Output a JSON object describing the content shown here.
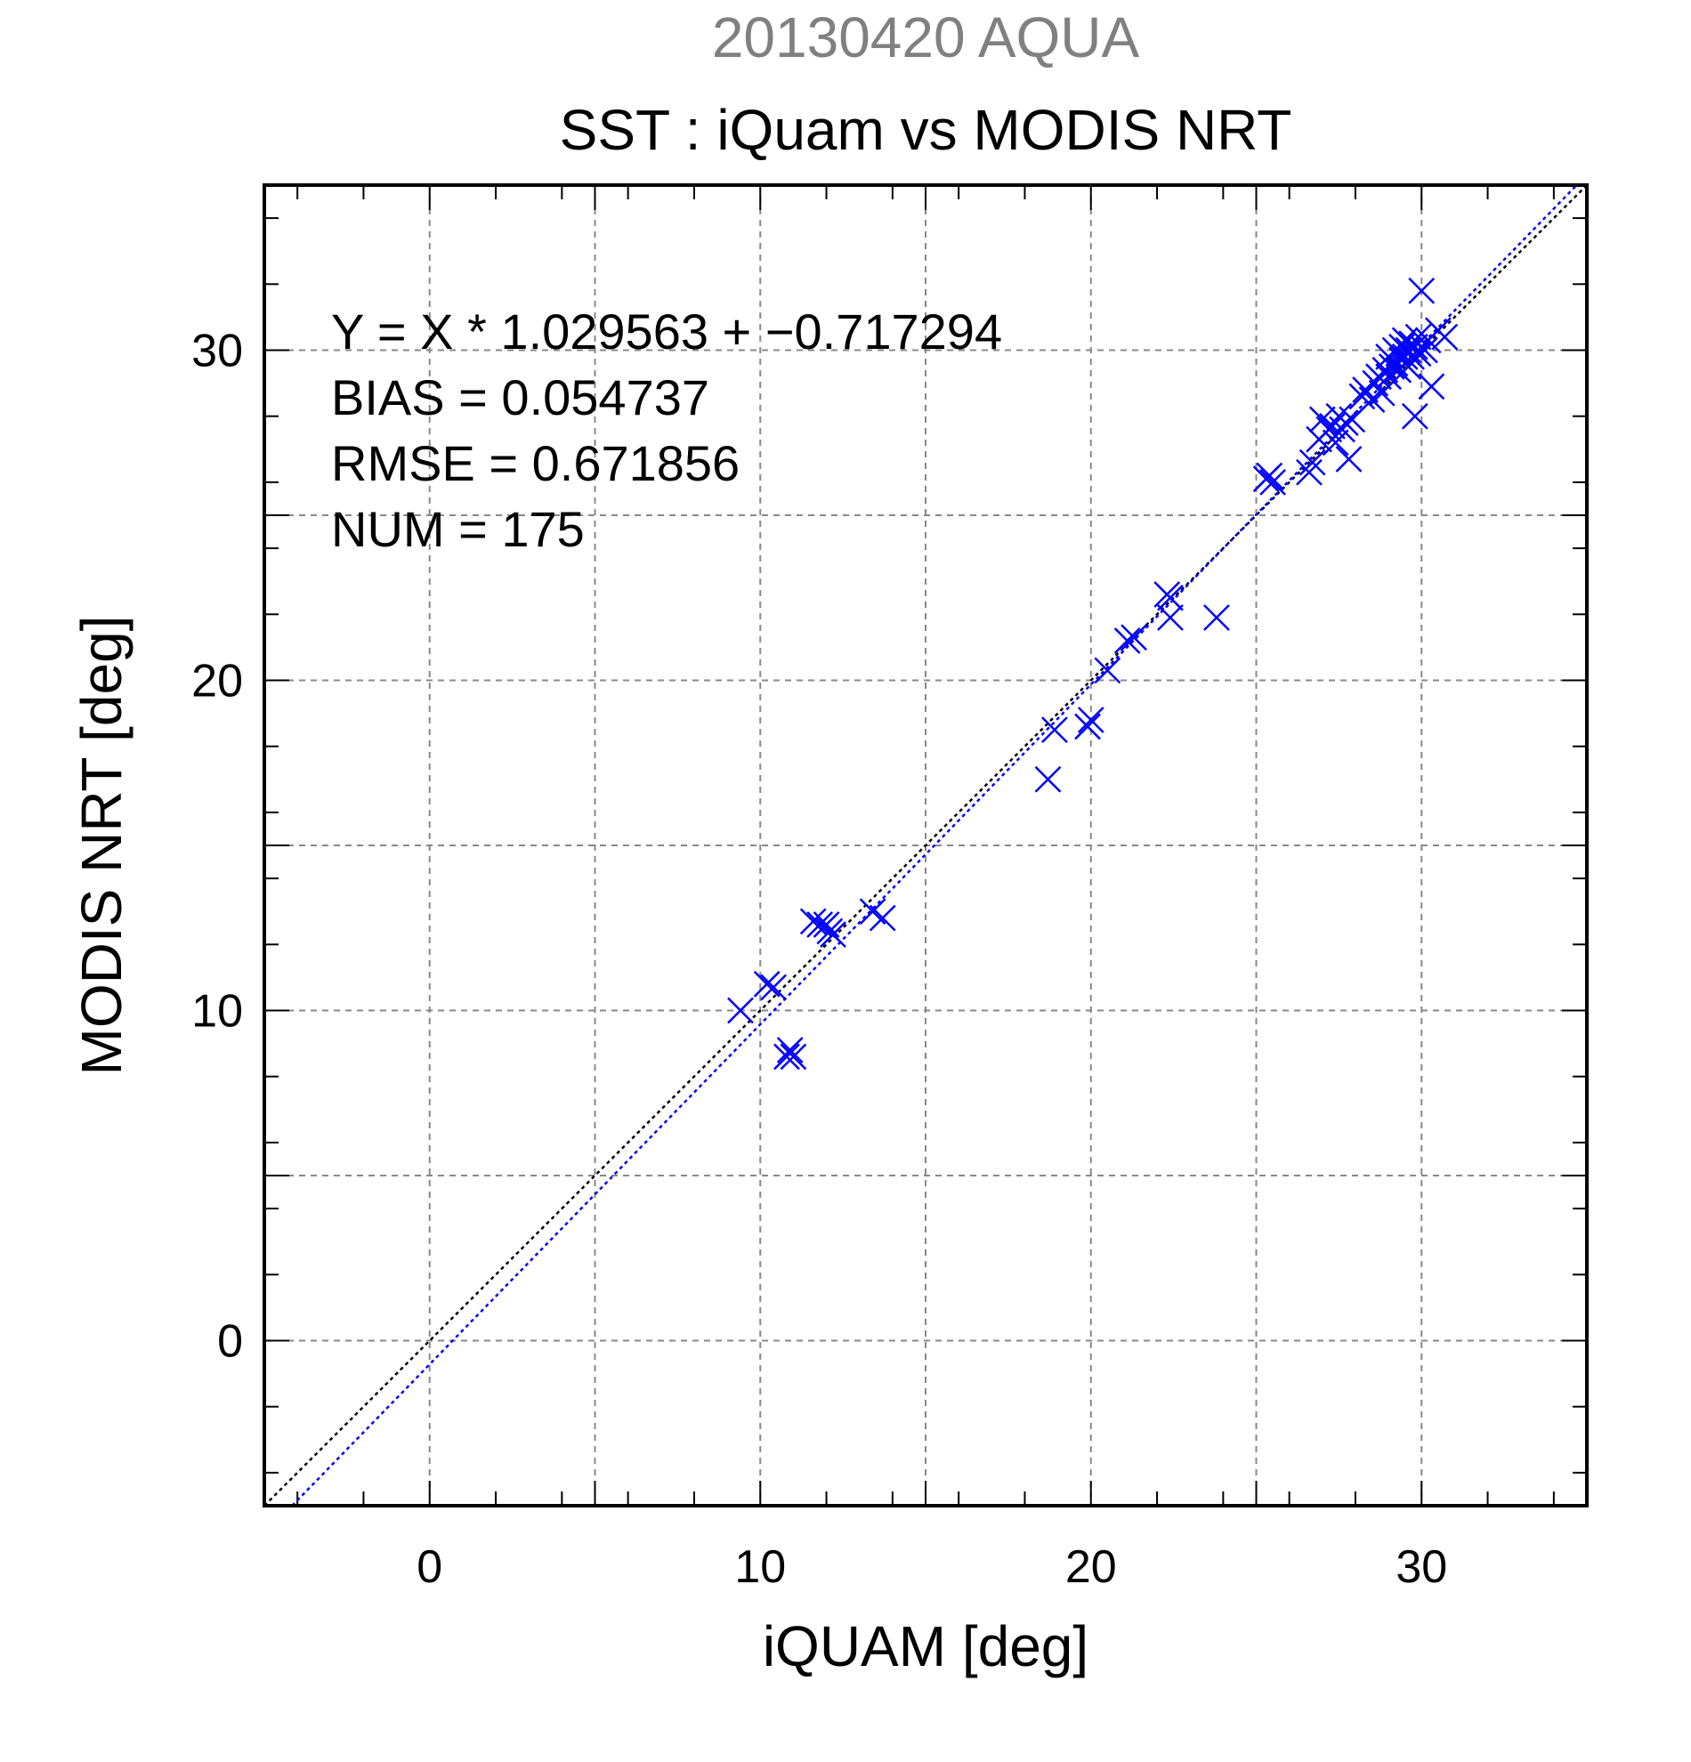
{
  "supertitle": "20130420 AQUA",
  "stats": {
    "line1": "Y = X * 1.029563 + −0.717294",
    "line2": "BIAS = 0.054737",
    "line3": "RMSE = 0.671856",
    "line4": "NUM = 175"
  },
  "colors": {
    "points": "#0000ff",
    "regression_line": "#0000ff",
    "identity_line": "#000000",
    "grid": "#888888",
    "supertitle": "#808080"
  },
  "chart_data": {
    "type": "scatter",
    "title": "SST : iQuam vs MODIS NRT",
    "xlabel": "iQUAM [deg]",
    "ylabel": "MODIS NRT [deg]",
    "xlim": [
      -5,
      35
    ],
    "ylim": [
      -5,
      35
    ],
    "xticks": [
      0,
      10,
      20,
      30
    ],
    "yticks": [
      0,
      10,
      20,
      30
    ],
    "grid": true,
    "grid_step": 5,
    "marker": "x",
    "regression": {
      "slope": 1.029563,
      "intercept": -0.717294
    },
    "identity_line": true,
    "series": [
      {
        "points": [
          [
            9.4,
            10.0
          ],
          [
            10.2,
            10.8
          ],
          [
            10.4,
            10.7
          ],
          [
            10.8,
            8.6
          ],
          [
            10.9,
            8.8
          ],
          [
            11.0,
            8.6
          ],
          [
            11.6,
            12.7
          ],
          [
            11.8,
            12.6
          ],
          [
            12.0,
            12.6
          ],
          [
            12.1,
            12.4
          ],
          [
            12.2,
            12.3
          ],
          [
            13.4,
            13.0
          ],
          [
            13.7,
            12.8
          ],
          [
            18.7,
            17.0
          ],
          [
            18.9,
            18.5
          ],
          [
            19.9,
            18.6
          ],
          [
            20.0,
            18.8
          ],
          [
            20.5,
            20.3
          ],
          [
            21.1,
            21.2
          ],
          [
            21.3,
            21.3
          ],
          [
            22.3,
            22.6
          ],
          [
            22.4,
            22.5
          ],
          [
            22.4,
            21.9
          ],
          [
            23.8,
            21.9
          ],
          [
            25.3,
            26.1
          ],
          [
            25.4,
            26.2
          ],
          [
            25.5,
            26.0
          ],
          [
            26.6,
            26.3
          ],
          [
            26.7,
            26.6
          ],
          [
            26.9,
            27.3
          ],
          [
            27.0,
            27.9
          ],
          [
            27.2,
            27.6
          ],
          [
            27.3,
            27.7
          ],
          [
            27.4,
            27.2
          ],
          [
            27.5,
            28.0
          ],
          [
            27.6,
            27.6
          ],
          [
            27.7,
            27.8
          ],
          [
            27.8,
            26.7
          ],
          [
            27.9,
            27.9
          ],
          [
            28.2,
            28.6
          ],
          [
            28.3,
            28.8
          ],
          [
            28.5,
            28.5
          ],
          [
            28.6,
            29.0
          ],
          [
            28.7,
            29.2
          ],
          [
            28.8,
            28.7
          ],
          [
            28.9,
            29.4
          ],
          [
            29.0,
            29.8
          ],
          [
            29.0,
            29.2
          ],
          [
            29.1,
            29.5
          ],
          [
            29.2,
            30.0
          ],
          [
            29.2,
            29.6
          ],
          [
            29.3,
            29.9
          ],
          [
            29.3,
            29.4
          ],
          [
            29.4,
            30.1
          ],
          [
            29.4,
            29.7
          ],
          [
            29.5,
            29.8
          ],
          [
            29.5,
            30.3
          ],
          [
            29.6,
            29.5
          ],
          [
            29.6,
            30.0
          ],
          [
            29.7,
            30.2
          ],
          [
            29.7,
            29.8
          ],
          [
            29.8,
            30.1
          ],
          [
            29.8,
            28.0
          ],
          [
            29.9,
            29.9
          ],
          [
            29.9,
            30.4
          ],
          [
            30.0,
            31.8
          ],
          [
            30.1,
            30.0
          ],
          [
            30.2,
            30.3
          ],
          [
            30.3,
            28.9
          ],
          [
            30.5,
            30.6
          ],
          [
            30.7,
            30.4
          ]
        ]
      }
    ]
  }
}
